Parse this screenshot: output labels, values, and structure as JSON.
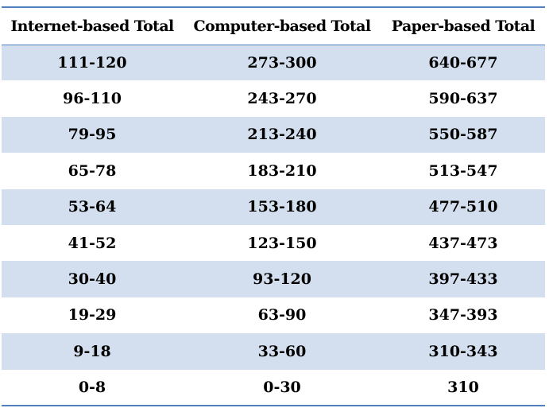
{
  "table": {
    "headers": [
      "Internet-based Total",
      "Computer-based Total",
      "Paper-based Total"
    ],
    "rows": [
      [
        "111-120",
        "273-300",
        "640-677"
      ],
      [
        "96-110",
        "243-270",
        "590-637"
      ],
      [
        "79-95",
        "213-240",
        "550-587"
      ],
      [
        "65-78",
        "183-210",
        "513-547"
      ],
      [
        "53-64",
        "153-180",
        "477-510"
      ],
      [
        "41-52",
        "123-150",
        "437-473"
      ],
      [
        "30-40",
        "93-120",
        "397-433"
      ],
      [
        "19-29",
        "63-90",
        "347-393"
      ],
      [
        "9-18",
        "33-60",
        "310-343"
      ],
      [
        "0-8",
        "0-30",
        "310"
      ]
    ],
    "band_color": "#d3dfee",
    "border_color": "#4f81bd"
  }
}
